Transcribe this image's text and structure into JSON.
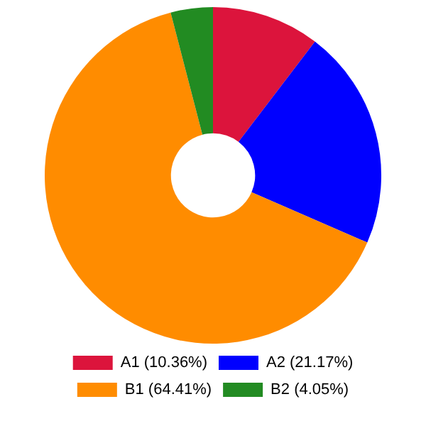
{
  "chart_data": {
    "type": "donut",
    "categories": [
      "A1 (10.36%)",
      "A2 (21.17%)",
      "B1 (64.41%)",
      "B2 (4.05%)"
    ],
    "values": [
      10.36,
      21.17,
      64.41,
      4.05
    ],
    "colors": [
      "#dc143c",
      "#0000ff",
      "#ff8c00",
      "#228b22"
    ],
    "legend": "bottom"
  }
}
